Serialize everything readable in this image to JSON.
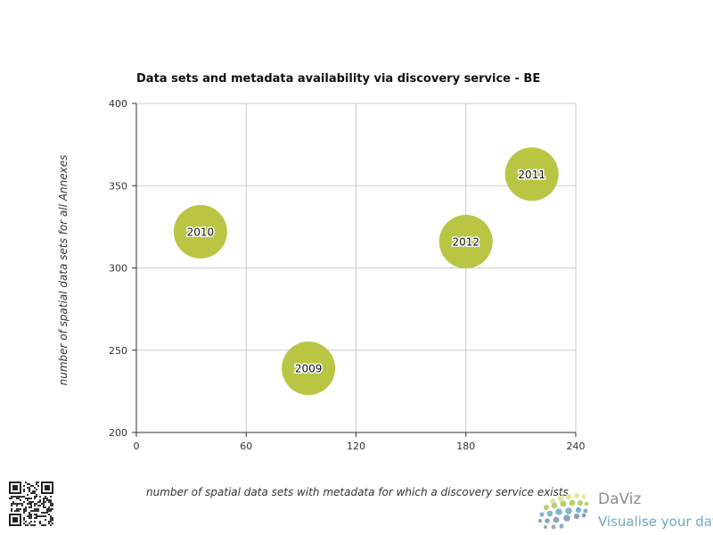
{
  "chart_data": {
    "type": "scatter",
    "title": "Data sets and metadata availability via discovery service - BE",
    "xlabel": "number of spatial data sets with metadata for which a discovery service exists",
    "ylabel": "number of spatial data sets for all Annexes",
    "xlim": [
      0,
      240
    ],
    "ylim": [
      200,
      400
    ],
    "x_ticks": [
      "0",
      "60",
      "120",
      "180",
      "240"
    ],
    "y_ticks": [
      "200",
      "250",
      "300",
      "350",
      "400"
    ],
    "grid": true,
    "bubble_color": "#b6c23a",
    "points": [
      {
        "label": "2009",
        "x": 94,
        "y": 239
      },
      {
        "label": "2010",
        "x": 35,
        "y": 322
      },
      {
        "label": "2011",
        "x": 216,
        "y": 357
      },
      {
        "label": "2012",
        "x": 180,
        "y": 316
      }
    ]
  },
  "branding": {
    "name": "DaViz",
    "tagline": "Visualise your data"
  }
}
